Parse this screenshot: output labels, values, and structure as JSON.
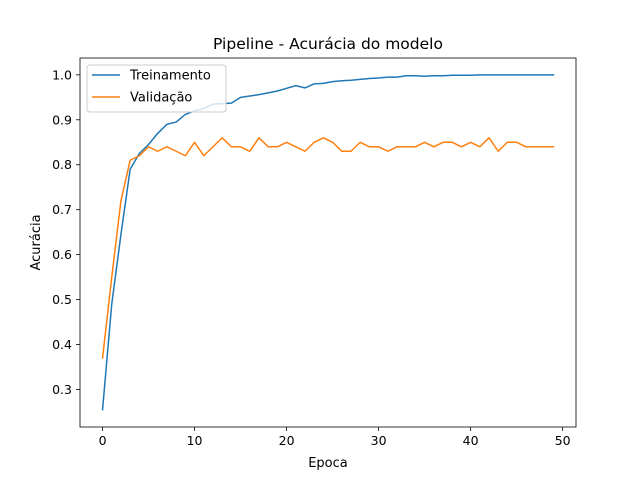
{
  "chart_data": {
    "type": "line",
    "title": "Pipeline - Acurácia do modelo",
    "xlabel": "Epoca",
    "ylabel": "Acurácia",
    "xlim": [
      -2.45,
      51.45
    ],
    "ylim": [
      0.2165,
      1.0375
    ],
    "xticks": [
      0,
      10,
      20,
      30,
      40,
      50
    ],
    "yticks": [
      0.3,
      0.4,
      0.5,
      0.6,
      0.7,
      0.8,
      0.9,
      1.0
    ],
    "ytick_labels": [
      "0.3",
      "0.4",
      "0.5",
      "0.6",
      "0.7",
      "0.8",
      "0.9",
      "1.0"
    ],
    "grid": false,
    "legend_position": "upper-left",
    "x": [
      0,
      1,
      2,
      3,
      4,
      5,
      6,
      7,
      8,
      9,
      10,
      11,
      12,
      13,
      14,
      15,
      16,
      17,
      18,
      19,
      20,
      21,
      22,
      23,
      24,
      25,
      26,
      27,
      28,
      29,
      30,
      31,
      32,
      33,
      34,
      35,
      36,
      37,
      38,
      39,
      40,
      41,
      42,
      43,
      44,
      45,
      46,
      47,
      48,
      49
    ],
    "series": [
      {
        "name": "Treinamento",
        "color": "#1f77b4",
        "values": [
          0.255,
          0.49,
          0.645,
          0.79,
          0.825,
          0.845,
          0.87,
          0.89,
          0.895,
          0.912,
          0.92,
          0.925,
          0.935,
          0.936,
          0.937,
          0.95,
          0.953,
          0.956,
          0.96,
          0.964,
          0.97,
          0.976,
          0.971,
          0.98,
          0.981,
          0.985,
          0.987,
          0.988,
          0.99,
          0.992,
          0.993,
          0.995,
          0.995,
          0.998,
          0.998,
          0.997,
          0.998,
          0.998,
          0.999,
          0.999,
          0.999,
          1.0,
          1.0,
          1.0,
          1.0,
          1.0,
          1.0,
          1.0,
          1.0,
          1.0
        ]
      },
      {
        "name": "Validação",
        "color": "#ff7f0e",
        "values": [
          0.37,
          0.55,
          0.72,
          0.81,
          0.82,
          0.84,
          0.83,
          0.84,
          0.83,
          0.82,
          0.85,
          0.82,
          0.84,
          0.86,
          0.84,
          0.84,
          0.83,
          0.86,
          0.84,
          0.84,
          0.85,
          0.84,
          0.83,
          0.85,
          0.86,
          0.85,
          0.83,
          0.83,
          0.85,
          0.84,
          0.84,
          0.83,
          0.84,
          0.84,
          0.84,
          0.85,
          0.84,
          0.85,
          0.85,
          0.84,
          0.85,
          0.84,
          0.86,
          0.83,
          0.85,
          0.85,
          0.84,
          0.84,
          0.84,
          0.84
        ]
      }
    ]
  }
}
